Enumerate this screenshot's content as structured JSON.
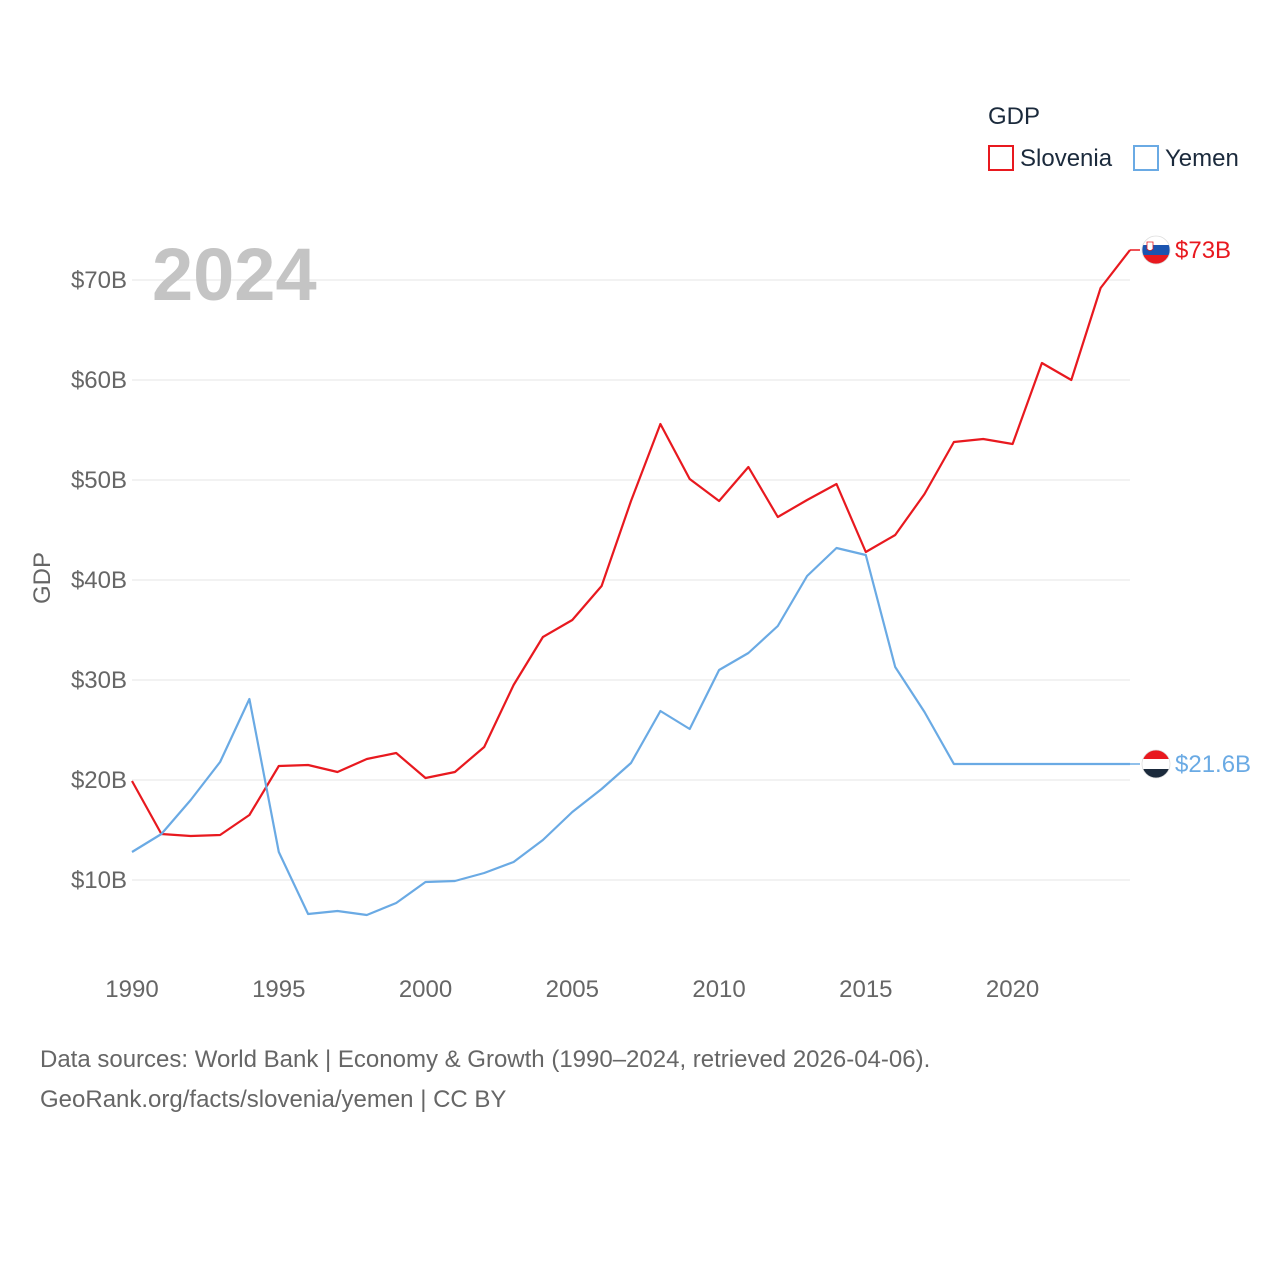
{
  "chart_data": {
    "type": "line",
    "year_label": "2024",
    "ylabel": "GDP",
    "legend": {
      "title": "GDP",
      "position": "top-right"
    },
    "x": [
      1990,
      1991,
      1992,
      1993,
      1994,
      1995,
      1996,
      1997,
      1998,
      1999,
      2000,
      2001,
      2002,
      2003,
      2004,
      2005,
      2006,
      2007,
      2008,
      2009,
      2010,
      2011,
      2012,
      2013,
      2014,
      2015,
      2016,
      2017,
      2018,
      2019,
      2020,
      2021,
      2022,
      2023,
      2024
    ],
    "xlim": [
      1990,
      2024
    ],
    "ylim": [
      3,
      75
    ],
    "xticks": [
      1990,
      1995,
      2000,
      2005,
      2010,
      2015,
      2020
    ],
    "yticks": [
      {
        "value": 10,
        "label": "$10B"
      },
      {
        "value": 20,
        "label": "$20B"
      },
      {
        "value": 30,
        "label": "$30B"
      },
      {
        "value": 40,
        "label": "$40B"
      },
      {
        "value": 50,
        "label": "$50B"
      },
      {
        "value": 60,
        "label": "$60B"
      },
      {
        "value": 70,
        "label": "$70B"
      }
    ],
    "grid": true,
    "series": [
      {
        "name": "Slovenia",
        "color": "#e8191f",
        "end_label": "$73B",
        "flag": "slovenia-flag",
        "values": [
          19.9,
          14.6,
          14.4,
          14.5,
          16.5,
          21.4,
          21.5,
          20.8,
          22.1,
          22.7,
          20.2,
          20.8,
          23.3,
          29.5,
          34.3,
          36.0,
          39.4,
          47.9,
          55.6,
          50.1,
          47.9,
          51.3,
          46.3,
          48.0,
          49.6,
          42.8,
          44.5,
          48.6,
          53.8,
          54.1,
          53.6,
          61.7,
          60.0,
          69.2,
          73.0
        ]
      },
      {
        "name": "Yemen",
        "color": "#6aaae4",
        "end_label": "$21.6B",
        "flag": "yemen-flag",
        "values": [
          12.8,
          14.6,
          18.0,
          21.8,
          28.1,
          12.8,
          6.6,
          6.9,
          6.5,
          7.7,
          9.8,
          9.9,
          10.7,
          11.8,
          14.0,
          16.8,
          19.1,
          21.7,
          26.9,
          25.1,
          31.0,
          32.7,
          35.4,
          40.4,
          43.2,
          42.5,
          31.3,
          26.8,
          21.6,
          21.6,
          21.6,
          21.6,
          21.6,
          21.6,
          21.6
        ]
      }
    ]
  },
  "footer": {
    "line1": "Data sources: World Bank | Economy & Growth (1990–2024, retrieved 2026-04-06).",
    "line2": "GeoRank.org/facts/slovenia/yemen | CC BY"
  }
}
